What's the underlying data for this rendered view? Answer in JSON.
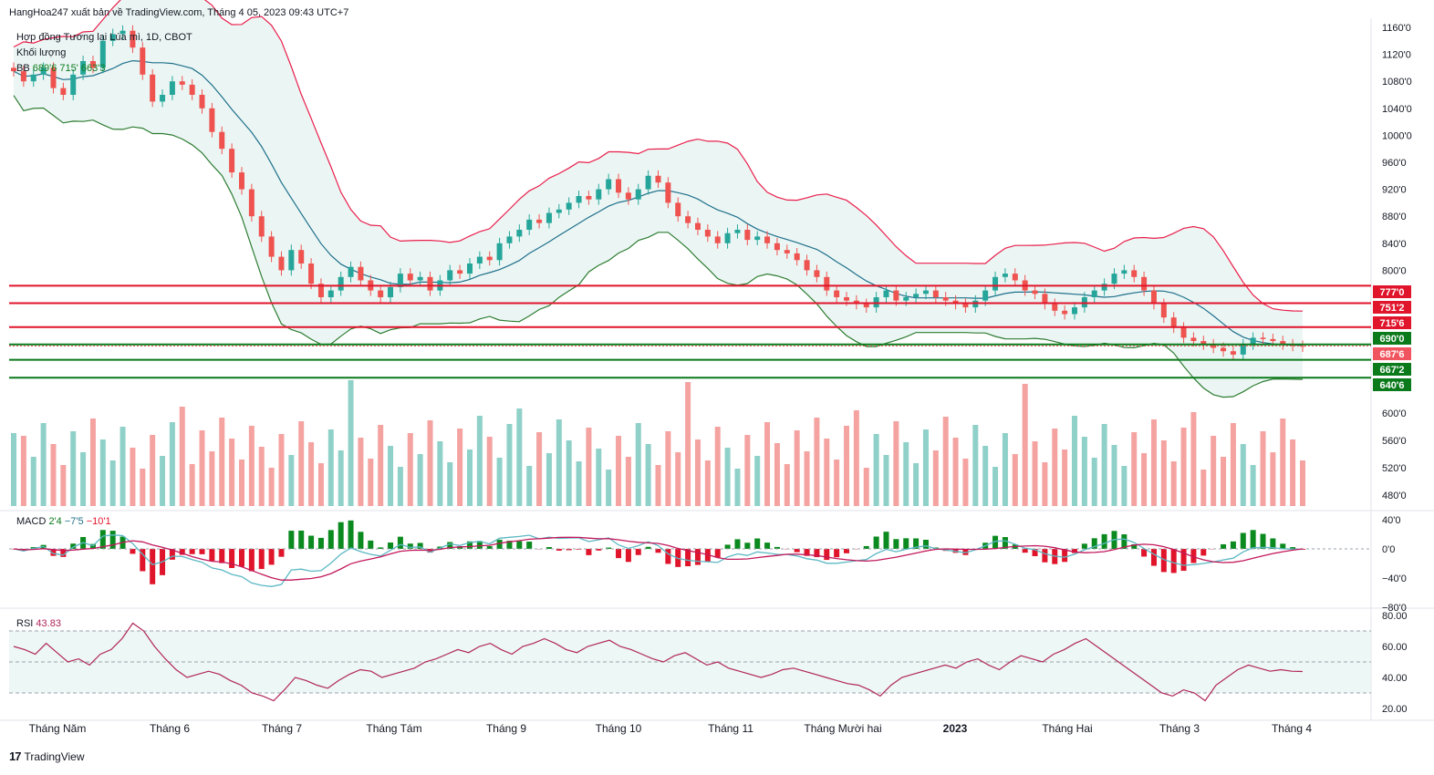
{
  "header": {
    "published": "HangHoa247 xuất bản về TradingView.com, Tháng 4 05, 2023 09:43 UTC+7"
  },
  "legend": {
    "symbol": "Hợp đồng Tương lai Lúa mì, 1D, CBOT",
    "volume": "Khối lượng",
    "bb": "BB",
    "bb_values": "689'6  715'  663'3"
  },
  "macd_legend": {
    "label": "MACD",
    "v1": "2'4",
    "v2": "−7'5",
    "v3": "−10'1"
  },
  "rsi_legend": {
    "label": "RSI",
    "value": "43.83"
  },
  "brand": {
    "text": "TradingView",
    "mark": "17"
  },
  "chart_data": {
    "type": "candlestick",
    "title": "Hợp đồng Tương lai Lúa mì, 1D, CBOT",
    "xlabels": [
      "Tháng Năm",
      "Tháng 6",
      "Tháng 7",
      "Tháng Tám",
      "Tháng 9",
      "Tháng 10",
      "Tháng 11",
      "Tháng Mười hai",
      "2023",
      "Tháng Hai",
      "Tháng 3",
      "Tháng 4"
    ],
    "price_axis": {
      "ticks": [
        "1160'0",
        "1120'0",
        "1080'0",
        "1040'0",
        "1000'0",
        "960'0",
        "920'0",
        "880'0",
        "840'0",
        "800'0"
      ],
      "range": [
        660,
        1160
      ]
    },
    "volume_axis": {
      "ticks": [
        "600'0",
        "560'0",
        "520'0",
        "480'0"
      ]
    },
    "macd_axis": {
      "ticks": [
        "40'0",
        "0'0",
        "−40'0",
        "−80'0"
      ]
    },
    "rsi_axis": {
      "ticks": [
        "80.00",
        "60.00",
        "40.00",
        "20.00"
      ],
      "bands": [
        70,
        50,
        30
      ]
    },
    "levels": [
      {
        "label": "777'0",
        "value": 777,
        "color": "#e0142b"
      },
      {
        "label": "751'2",
        "value": 751.25,
        "color": "#e0142b"
      },
      {
        "label": "715'6",
        "value": 715.75,
        "color": "#e0142b"
      },
      {
        "label": "690'0",
        "value": 690,
        "color": "#0b7a1b"
      },
      {
        "label": "687'6",
        "value": 687.75,
        "color": "#f0545e"
      },
      {
        "label": "667'2",
        "value": 667.25,
        "color": "#0b7a1b"
      },
      {
        "label": "640'6",
        "value": 640.75,
        "color": "#0b7a1b"
      }
    ],
    "close_series": [
      1095,
      1080,
      1090,
      1100,
      1070,
      1060,
      1090,
      1110,
      1100,
      1140,
      1150,
      1155,
      1130,
      1090,
      1050,
      1060,
      1080,
      1075,
      1060,
      1040,
      1005,
      980,
      945,
      920,
      880,
      850,
      820,
      800,
      830,
      810,
      780,
      760,
      770,
      790,
      805,
      785,
      770,
      760,
      775,
      795,
      785,
      790,
      770,
      785,
      800,
      795,
      810,
      820,
      815,
      840,
      850,
      860,
      875,
      870,
      885,
      890,
      900,
      910,
      905,
      920,
      935,
      915,
      905,
      920,
      940,
      930,
      900,
      880,
      870,
      860,
      850,
      840,
      855,
      860,
      845,
      850,
      840,
      830,
      825,
      815,
      800,
      790,
      770,
      760,
      755,
      750,
      745,
      760,
      770,
      755,
      760,
      765,
      770,
      760,
      755,
      750,
      745,
      755,
      770,
      790,
      795,
      785,
      770,
      765,
      750,
      740,
      735,
      745,
      760,
      770,
      780,
      795,
      800,
      790,
      770,
      750,
      730,
      715,
      700,
      695,
      690,
      685,
      680,
      675,
      690,
      700,
      698,
      695,
      690,
      688,
      687
    ],
    "rsi_series": [
      60,
      58,
      55,
      62,
      56,
      50,
      52,
      48,
      55,
      58,
      65,
      75,
      70,
      60,
      52,
      45,
      40,
      42,
      44,
      42,
      38,
      35,
      30,
      28,
      25,
      32,
      40,
      38,
      35,
      33,
      38,
      42,
      45,
      44,
      40,
      42,
      44,
      46,
      50,
      52,
      55,
      58,
      56,
      60,
      62,
      58,
      55,
      60,
      62,
      65,
      62,
      58,
      56,
      60,
      62,
      64,
      60,
      58,
      55,
      52,
      50,
      54,
      56,
      52,
      48,
      50,
      46,
      44,
      42,
      40,
      42,
      45,
      46,
      44,
      42,
      40,
      38,
      36,
      35,
      32,
      28,
      35,
      40,
      42,
      44,
      46,
      48,
      46,
      50,
      52,
      48,
      45,
      50,
      54,
      52,
      50,
      55,
      58,
      62,
      65,
      60,
      55,
      50,
      45,
      40,
      35,
      30,
      28,
      32,
      30,
      25,
      35,
      40,
      45,
      48,
      46,
      44,
      45,
      44,
      43.83
    ]
  },
  "colors": {
    "up": "#26a69a",
    "down": "#ef5350",
    "band": "#e91e4b",
    "basis": "#1f6f8b",
    "lower": "#2e7d32"
  }
}
